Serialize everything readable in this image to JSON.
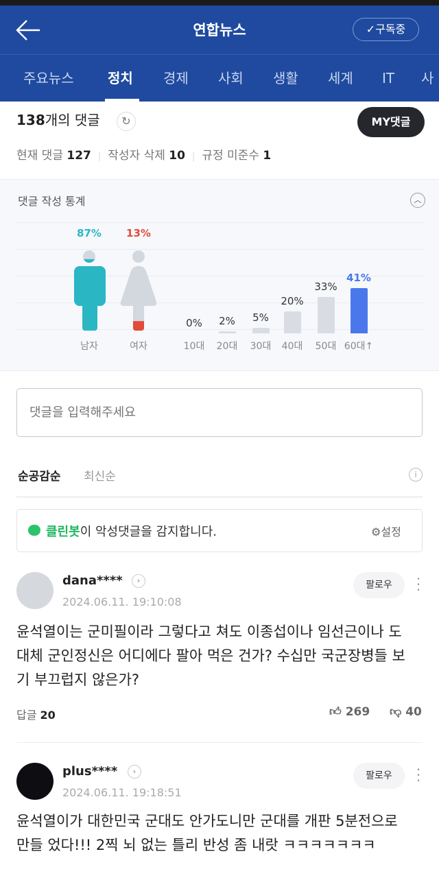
{
  "header": {
    "title": "연합뉴스",
    "subscribe_label": "✓구독중"
  },
  "tabs": [
    "주요뉴스",
    "정치",
    "경제",
    "사회",
    "생활",
    "세계",
    "IT",
    "사"
  ],
  "active_tab": "정치",
  "summary": {
    "count": "138",
    "count_suffix": "개의 댓글",
    "my_comments": "MY댓글",
    "current_label": "현재 댓글",
    "current": "127",
    "deleted_label": "작성자 삭제",
    "deleted": "10",
    "violation_label": "규정 미준수",
    "violation": "1"
  },
  "stats": {
    "title": "댓글 작성 통계",
    "gender": [
      {
        "label": "남자",
        "pct": 87,
        "pct_text": "87%",
        "color": "#2bb6c4"
      },
      {
        "label": "여자",
        "pct": 13,
        "pct_text": "13%",
        "color": "#e24a3b"
      }
    ],
    "ages": [
      {
        "label": "10대",
        "pct": 0,
        "pct_text": "0%"
      },
      {
        "label": "20대",
        "pct": 2,
        "pct_text": "2%"
      },
      {
        "label": "30대",
        "pct": 5,
        "pct_text": "5%"
      },
      {
        "label": "40대",
        "pct": 20,
        "pct_text": "20%"
      },
      {
        "label": "50대",
        "pct": 33,
        "pct_text": "33%"
      },
      {
        "label": "60대↑",
        "pct": 41,
        "pct_text": "41%"
      }
    ],
    "highlight_color": "#4a78ec"
  },
  "input": {
    "placeholder": "댓글을 입력해주세요"
  },
  "sort": {
    "active": "순공감순",
    "other": "최신순"
  },
  "cleanbot": {
    "name": "클린봇",
    "text": "이 악성댓글을 감지합니다.",
    "settings": "설정"
  },
  "comments": [
    {
      "user": "dana****",
      "date": "2024.06.11. 19:10:08",
      "follow": "팔로우",
      "body": "윤석열이는 군미필이라 그렇다고 쳐도 이종섭이나 임선근이나 도대체 군인정신은 어디에다 팔아 먹은 건가? 수십만 국군장병들 보기 부끄럽지 않은가?",
      "reply_label": "답글",
      "replies": "20",
      "likes": "269",
      "dislikes": "40"
    },
    {
      "user": "plus****",
      "date": "2024.06.11. 19:18:51",
      "follow": "팔로우",
      "body": "윤석열이가 대한민국 군대도 안가도니만 군대를 개판 5분전으로 만들 었다!!! 2찍 뇌 없는 틀리 반성 좀 내랏 ㅋㅋㅋㅋㅋㅋㅋ"
    }
  ]
}
